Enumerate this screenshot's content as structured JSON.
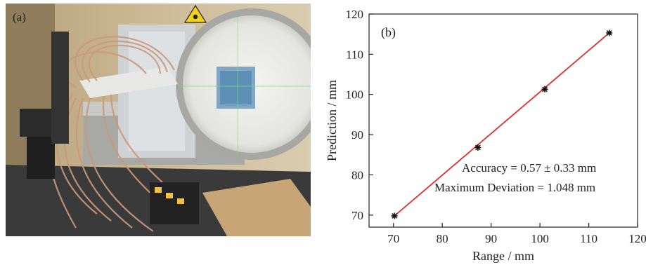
{
  "panel_a": {
    "label": "(a)",
    "description_icons": [
      "radiation-warning-icon"
    ]
  },
  "chart_data": {
    "type": "scatter",
    "panel_label": "(b)",
    "xlabel": "Range / mm",
    "ylabel": "Prediction / mm",
    "xlim": [
      65,
      120
    ],
    "ylim": [
      67,
      120
    ],
    "x_ticks": [
      70,
      80,
      90,
      100,
      110,
      120
    ],
    "y_ticks": [
      70,
      80,
      90,
      100,
      110,
      120
    ],
    "series": [
      {
        "x": [
          70.2,
          87.3,
          101.0,
          114.2
        ],
        "y": [
          69.8,
          86.8,
          101.3,
          115.3
        ],
        "marker": "star",
        "color": "#111111"
      }
    ],
    "fit_line": {
      "x": [
        70.2,
        114.2
      ],
      "y": [
        69.8,
        115.3
      ],
      "color": "#e03030"
    },
    "annotations": [
      "Accuracy = 0.57 ± 0.33 mm",
      "Maximum Deviation = 1.048 mm"
    ],
    "grid": false
  }
}
